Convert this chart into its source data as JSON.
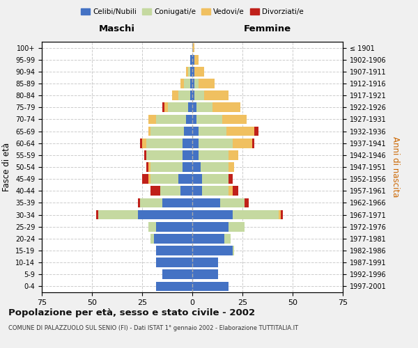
{
  "age_groups": [
    "0-4",
    "5-9",
    "10-14",
    "15-19",
    "20-24",
    "25-29",
    "30-34",
    "35-39",
    "40-44",
    "45-49",
    "50-54",
    "55-59",
    "60-64",
    "65-69",
    "70-74",
    "75-79",
    "80-84",
    "85-89",
    "90-94",
    "95-99",
    "100+"
  ],
  "birth_years": [
    "1997-2001",
    "1992-1996",
    "1987-1991",
    "1982-1986",
    "1977-1981",
    "1972-1976",
    "1967-1971",
    "1962-1966",
    "1957-1961",
    "1952-1956",
    "1947-1951",
    "1942-1946",
    "1937-1941",
    "1932-1936",
    "1927-1931",
    "1922-1926",
    "1917-1921",
    "1912-1916",
    "1907-1911",
    "1902-1906",
    "≤ 1901"
  ],
  "male": {
    "celibi": [
      18,
      15,
      18,
      18,
      19,
      18,
      27,
      15,
      6,
      7,
      5,
      5,
      5,
      4,
      3,
      2,
      1,
      1,
      1,
      1,
      0
    ],
    "coniugati": [
      0,
      0,
      0,
      0,
      2,
      4,
      20,
      11,
      10,
      14,
      16,
      18,
      18,
      17,
      15,
      10,
      6,
      3,
      1,
      0,
      0
    ],
    "vedovi": [
      0,
      0,
      0,
      0,
      0,
      0,
      0,
      0,
      0,
      1,
      1,
      0,
      2,
      1,
      4,
      2,
      3,
      2,
      1,
      0,
      0
    ],
    "divorziati": [
      0,
      0,
      0,
      0,
      0,
      0,
      1,
      1,
      5,
      3,
      1,
      1,
      1,
      0,
      0,
      1,
      0,
      0,
      0,
      0,
      0
    ]
  },
  "female": {
    "nubili": [
      18,
      13,
      13,
      20,
      16,
      18,
      20,
      14,
      5,
      5,
      4,
      3,
      3,
      3,
      2,
      2,
      1,
      1,
      1,
      1,
      0
    ],
    "coniugate": [
      0,
      0,
      0,
      1,
      3,
      8,
      23,
      12,
      13,
      13,
      14,
      15,
      17,
      14,
      13,
      8,
      5,
      2,
      0,
      0,
      0
    ],
    "vedove": [
      0,
      0,
      0,
      0,
      0,
      0,
      1,
      0,
      2,
      0,
      3,
      5,
      10,
      14,
      12,
      14,
      12,
      8,
      5,
      2,
      1
    ],
    "divorziate": [
      0,
      0,
      0,
      0,
      0,
      0,
      1,
      2,
      3,
      2,
      0,
      0,
      1,
      2,
      0,
      0,
      0,
      0,
      0,
      0,
      0
    ]
  },
  "colors": {
    "celibi_nubili": "#4472c4",
    "coniugati": "#c5d9a0",
    "vedovi": "#f0c060",
    "divorziati": "#c0201a"
  },
  "title": "Popolazione per età, sesso e stato civile - 2002",
  "subtitle": "COMUNE DI PALAZZUOLO SUL SENIO (FI) - Dati ISTAT 1° gennaio 2002 - Elaborazione TUTTITALIA.IT",
  "xlabel_left": "Maschi",
  "xlabel_right": "Femmine",
  "ylabel_left": "Fasce di età",
  "ylabel_right": "Anni di nascita",
  "xlim": 75,
  "bg_color": "#f0f0f0",
  "plot_bg_color": "#ffffff",
  "grid_color": "#cccccc"
}
